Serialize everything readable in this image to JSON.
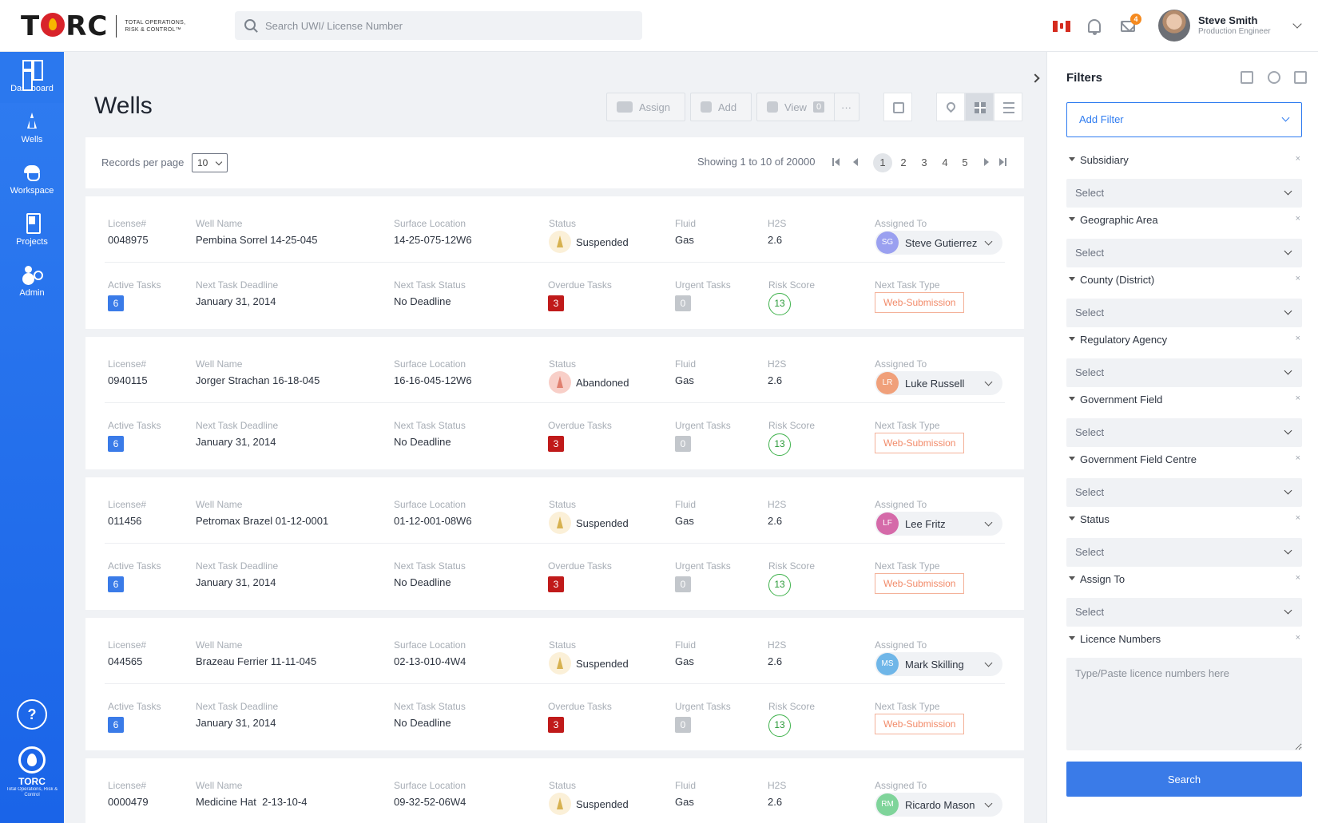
{
  "brand": {
    "logo_text": "TORC",
    "tagline": "TOTAL OPERATIONS, RISK & CONTROL™"
  },
  "search": {
    "placeholder": "Search UWI/ License Number",
    "value": ""
  },
  "header": {
    "mail_count": "4",
    "user_name": "Steve Smith",
    "user_role": "Production Engineer"
  },
  "nav": {
    "items": [
      {
        "label": "Dashboard"
      },
      {
        "label": "Wells"
      },
      {
        "label": "Workspace"
      },
      {
        "label": "Projects"
      },
      {
        "label": "Admin"
      }
    ],
    "help": "?",
    "footer_logo": "TORC",
    "footer_tagline": "Total Operations, Risk & Control"
  },
  "page": {
    "title": "Wells"
  },
  "toolbar": {
    "assign": "Assign",
    "add": "Add",
    "view": "View",
    "view_count": "0",
    "more": "···"
  },
  "pager": {
    "records_label": "Records per page",
    "records_value": "10",
    "showing": "Showing 1 to 10 of 20000",
    "pages": [
      "1",
      "2",
      "3",
      "4",
      "5"
    ],
    "current": "1"
  },
  "labels": {
    "license": "License#",
    "well_name": "Well Name",
    "surface_location": "Surface Location",
    "status": "Status",
    "fluid": "Fluid",
    "h2s": "H2S",
    "assigned_to": "Assigned To",
    "active_tasks": "Active Tasks",
    "next_deadline": "Next Task Deadline",
    "next_status": "Next Task Status",
    "overdue": "Overdue Tasks",
    "urgent": "Urgent Tasks",
    "risk": "Risk Score",
    "next_type": "Next Task Type"
  },
  "wells": [
    {
      "license": "0048975",
      "name": "Pembina Sorrel 14-25-045",
      "location": "14-25-075-12W6",
      "status": "Suspended",
      "fluid": "Gas",
      "h2s": "2.6",
      "initials": "SG",
      "assignee": "Steve Gutierrez",
      "active": "6",
      "deadline": "January 31, 2014",
      "next_status": "No Deadline",
      "overdue": "3",
      "urgent": "0",
      "risk": "13",
      "type": "Web-Submission"
    },
    {
      "license": "0940115",
      "name": "Jorger Strachan 16-18-045",
      "location": "16-16-045-12W6",
      "status": "Abandoned",
      "fluid": "Gas",
      "h2s": "2.6",
      "initials": "LR",
      "assignee": "Luke Russell",
      "active": "6",
      "deadline": "January 31, 2014",
      "next_status": "No Deadline",
      "overdue": "3",
      "urgent": "0",
      "risk": "13",
      "type": "Web-Submission"
    },
    {
      "license": "011456",
      "name": "Petromax Brazel 01-12-0001",
      "location": "01-12-001-08W6",
      "status": "Suspended",
      "fluid": "Gas",
      "h2s": "2.6",
      "initials": "LF",
      "assignee": "Lee Fritz",
      "active": "6",
      "deadline": "January 31, 2014",
      "next_status": "No Deadline",
      "overdue": "3",
      "urgent": "0",
      "risk": "13",
      "type": "Web-Submission"
    },
    {
      "license": "044565",
      "name": "Brazeau Ferrier 11-11-045",
      "location": "02-13-010-4W4",
      "status": "Suspended",
      "fluid": "Gas",
      "h2s": "2.6",
      "initials": "MS",
      "assignee": "Mark Skilling",
      "active": "6",
      "deadline": "January 31, 2014",
      "next_status": "No Deadline",
      "overdue": "3",
      "urgent": "0",
      "risk": "13",
      "type": "Web-Submission"
    },
    {
      "license": "0000479",
      "name": "Medicine Hat  2-13-10-4",
      "location": "09-32-52-06W4",
      "status": "Suspended",
      "fluid": "Gas",
      "h2s": "2.6",
      "initials": "RM",
      "assignee": "Ricardo Mason"
    }
  ],
  "colors": {
    "nav_bg": "#2f7cf0",
    "accent": "#3a7be8",
    "avatar_sg": "#9aa0f0",
    "avatar_lr": "#f0a07a",
    "avatar_lf": "#d56aa9",
    "avatar_ms": "#6fb6e8",
    "avatar_rm": "#7fd49a"
  },
  "filters": {
    "title": "Filters",
    "add_filter": "Add Filter",
    "groups": [
      {
        "label": "Subsidiary",
        "value": "Select"
      },
      {
        "label": "Geographic Area",
        "value": "Select"
      },
      {
        "label": "County (District)",
        "value": "Select"
      },
      {
        "label": "Regulatory Agency",
        "value": "Select"
      },
      {
        "label": "Government Field",
        "value": "Select"
      },
      {
        "label": "Government Field Centre",
        "value": "Select"
      },
      {
        "label": "Status",
        "value": "Select"
      },
      {
        "label": "Assign To",
        "value": "Select"
      }
    ],
    "licence_label": "Licence Numbers",
    "licence_placeholder": "Type/Paste licence numbers here",
    "remove": "×",
    "search_button": "Search"
  }
}
